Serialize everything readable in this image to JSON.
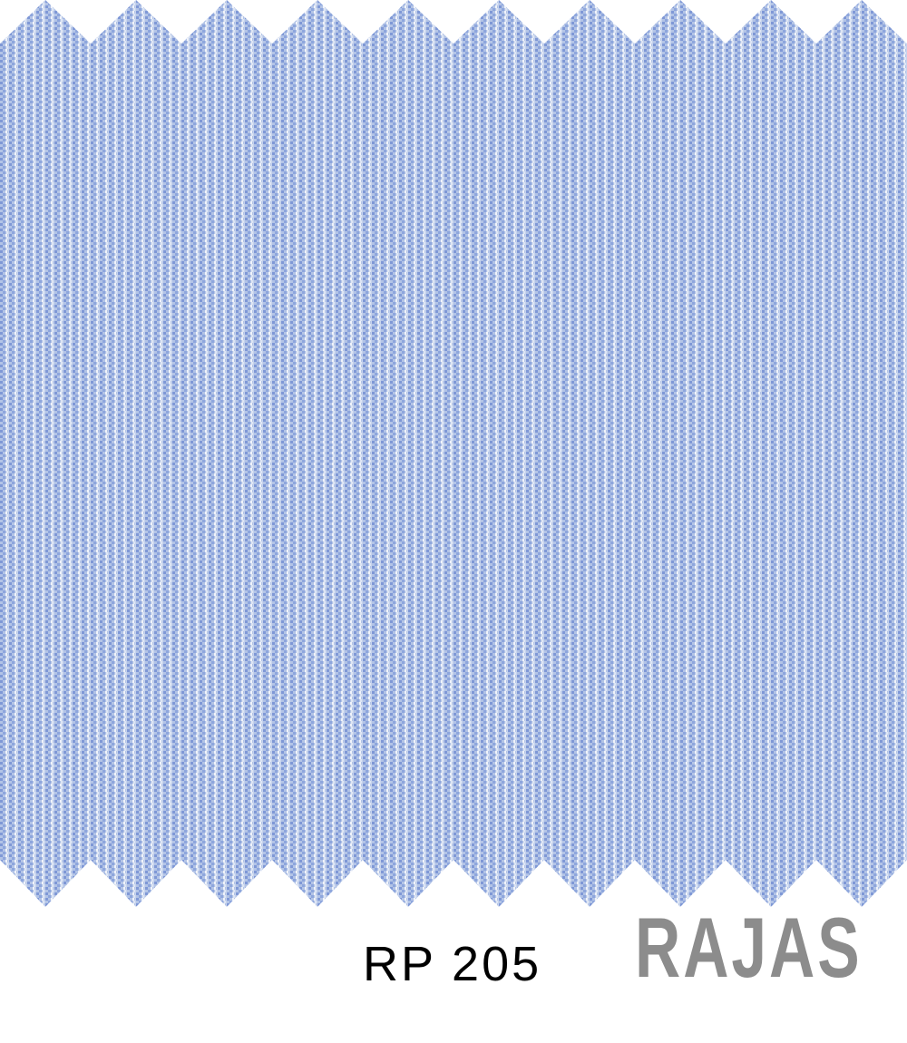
{
  "swatch": {
    "description_icon": "fabric-swatch-pinstripe",
    "colors": {
      "base": "#a8bde3",
      "stripe_dark": "#8fa6dc",
      "stripe_light": "#e9eef7",
      "background": "#ffffff"
    }
  },
  "label": {
    "code": "RP 205",
    "brand": "RAJAS",
    "code_color": "#000000",
    "brand_color": "#8c8c8c"
  }
}
